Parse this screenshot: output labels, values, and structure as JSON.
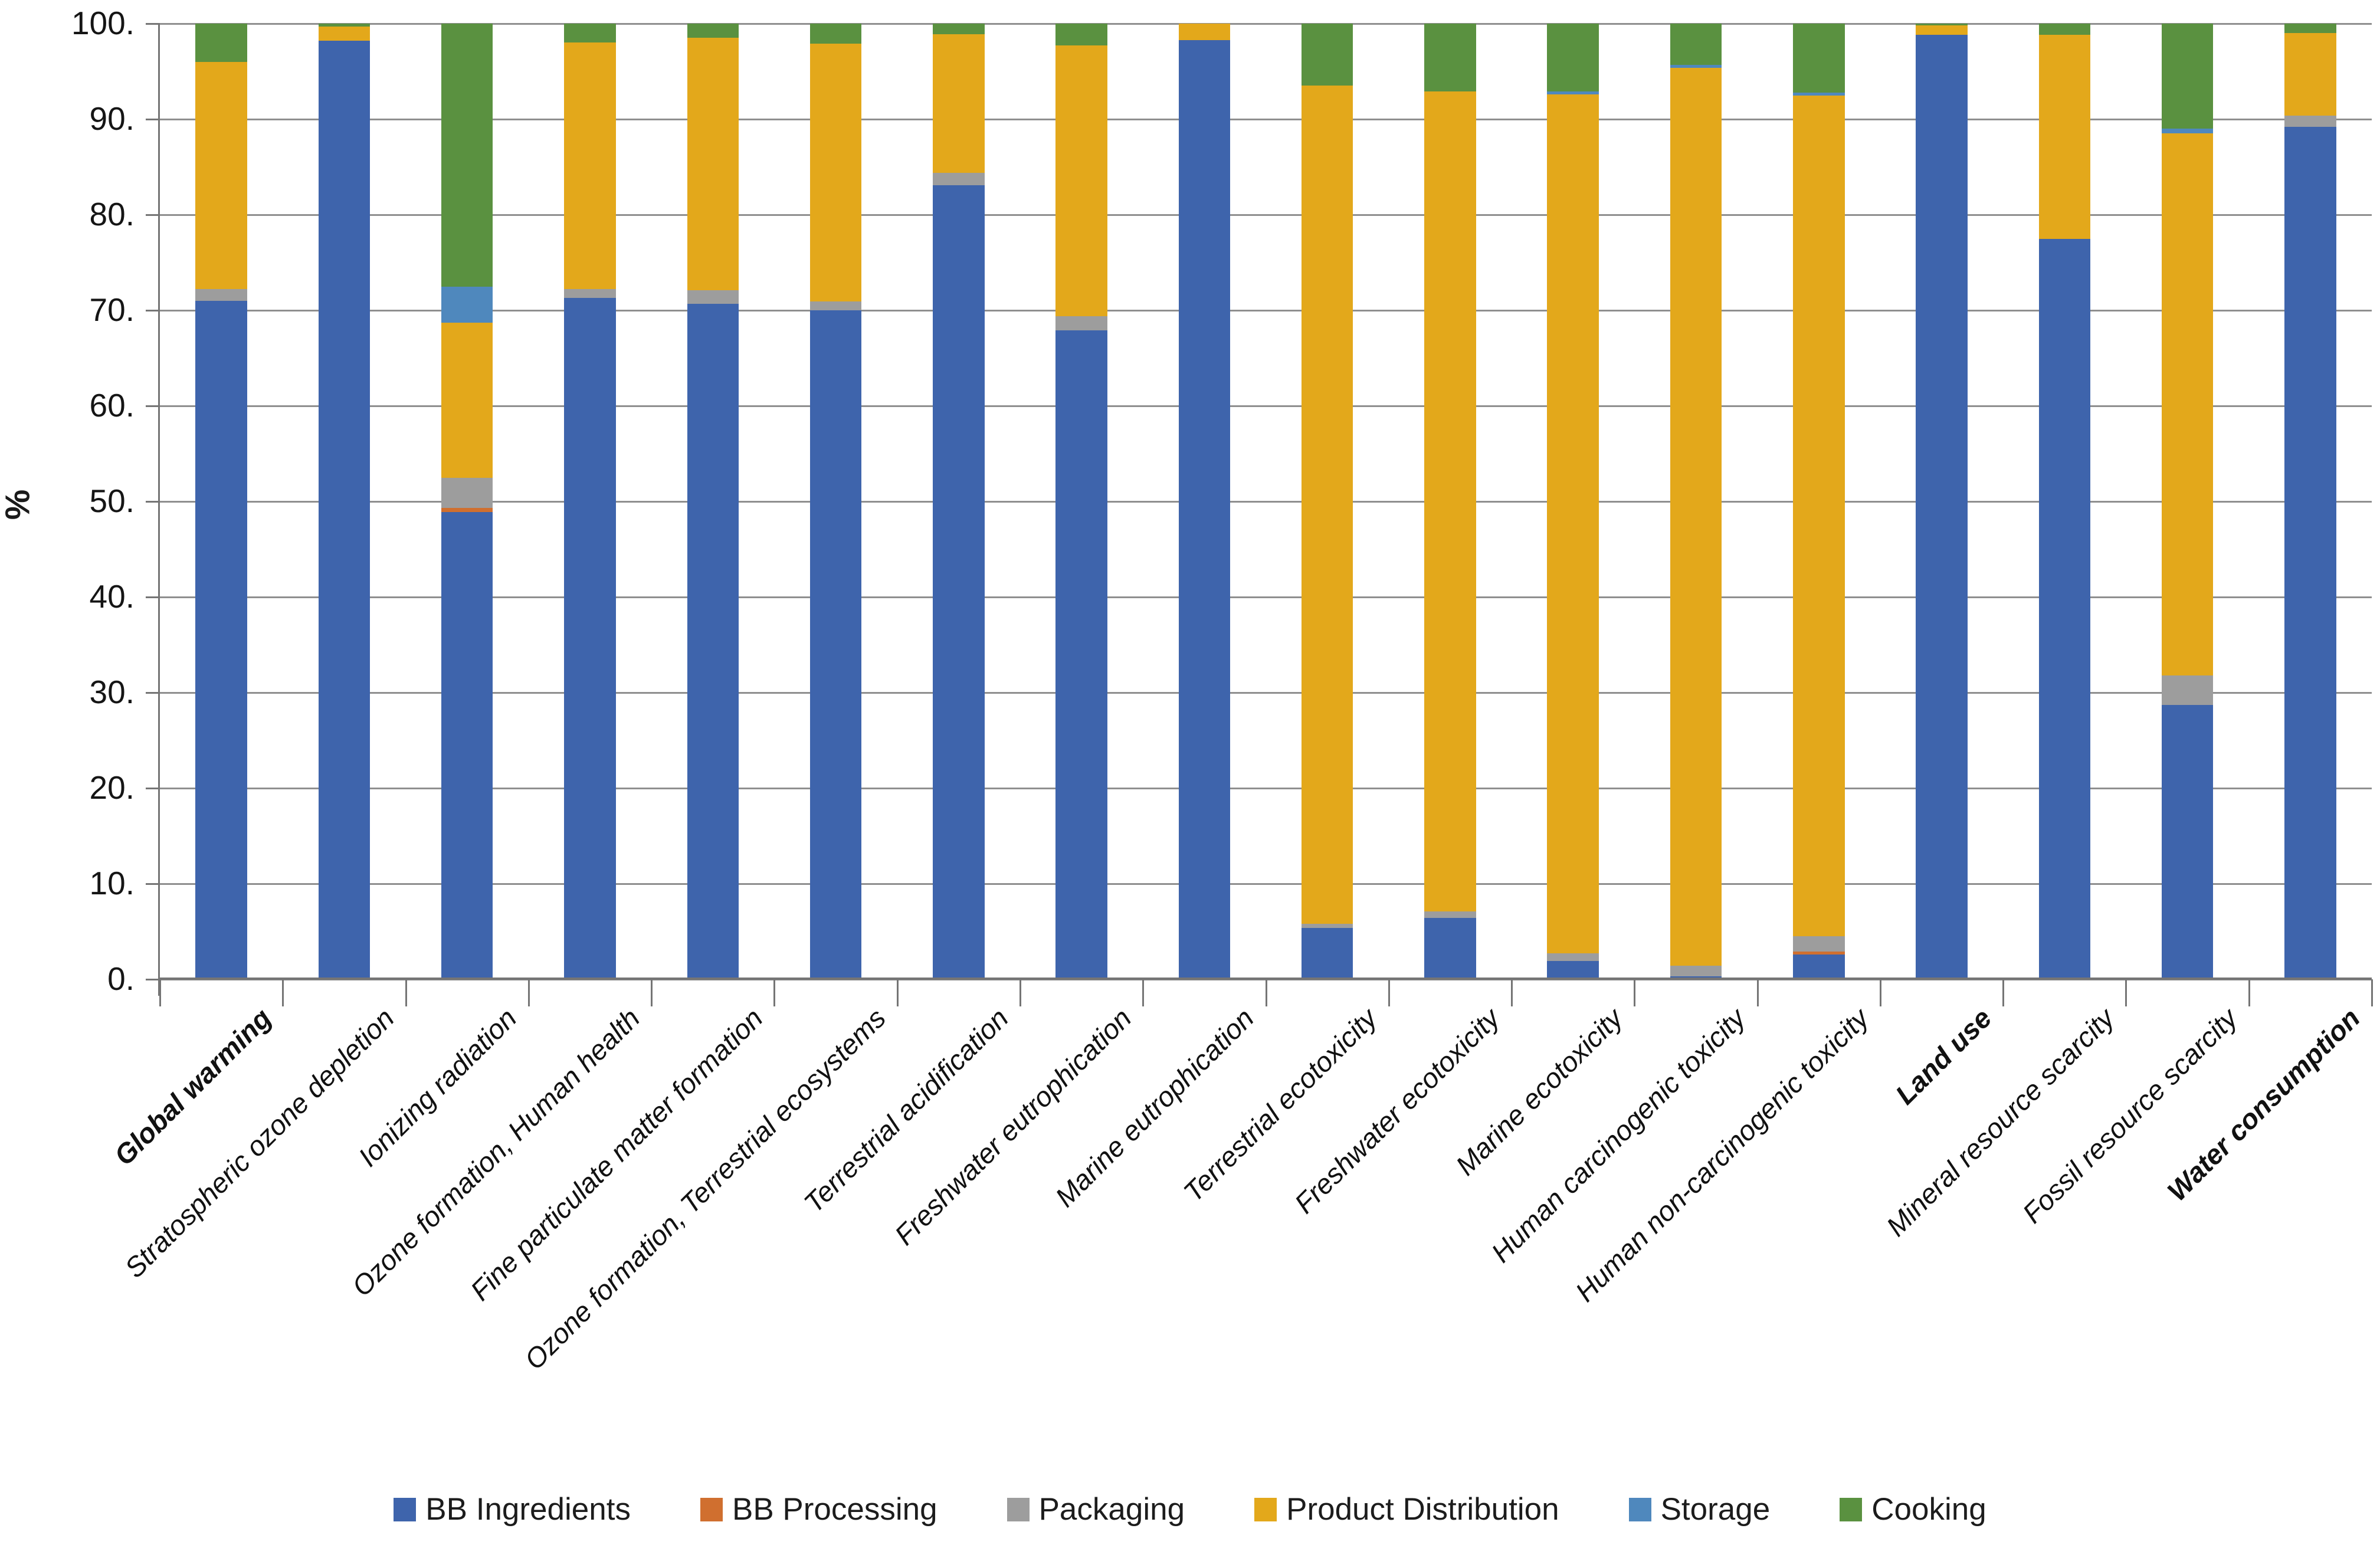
{
  "chart_data": {
    "type": "bar",
    "stacked": true,
    "orientation": "vertical",
    "title": "",
    "xlabel": "",
    "ylabel": "%",
    "ylim": [
      0,
      100
    ],
    "ytick_step": 10,
    "ytick_suffix": ".",
    "grid": true,
    "legend_position": "bottom",
    "categories": [
      "Global warming",
      "Stratospheric ozone depletion",
      "Ionizing radiation",
      "Ozone formation, Human health",
      "Fine particulate matter formation",
      "Ozone formation, Terrestrial ecosystems",
      "Terrestrial acidification",
      "Freshwater eutrophication",
      "Marine eutrophication",
      "Terrestrial ecotoxicity",
      "Freshwater ecotoxicity",
      "Marine ecotoxicity",
      "Human carcinogenic toxicity",
      "Human non-carcinogenic toxicity",
      "Land use",
      "Mineral resource scarcity",
      "Fossil resource scarcity",
      "Water consumption"
    ],
    "bold_category_indices": [
      0,
      14,
      17
    ],
    "series": [
      {
        "name": "BB Ingredients",
        "color": "#3E64AC",
        "values": [
          71.0,
          98.2,
          48.9,
          71.3,
          70.7,
          70.0,
          83.1,
          67.9,
          98.3,
          5.4,
          6.4,
          1.9,
          0.3,
          2.6,
          98.8,
          77.5,
          28.7,
          89.2
        ]
      },
      {
        "name": "BB Processing",
        "color": "#D06F2F",
        "values": [
          0,
          0,
          0.4,
          0,
          0,
          0,
          0,
          0,
          0,
          0,
          0,
          0,
          0,
          0.3,
          0,
          0,
          0,
          0
        ]
      },
      {
        "name": "Packaging",
        "color": "#9D9D9D",
        "values": [
          1.2,
          0,
          3.2,
          0.9,
          1.4,
          0.9,
          1.3,
          1.5,
          0,
          0.4,
          0.7,
          0.8,
          1.1,
          1.6,
          0,
          0,
          3.1,
          1.2
        ]
      },
      {
        "name": "Product Distribution",
        "color": "#E3A81B",
        "values": [
          23.8,
          1.5,
          16.2,
          25.8,
          26.4,
          27.0,
          14.5,
          28.3,
          1.7,
          87.7,
          85.8,
          89.9,
          94.0,
          88.0,
          1.0,
          21.3,
          56.7,
          8.6
        ]
      },
      {
        "name": "Storage",
        "color": "#4F88BD",
        "values": [
          0,
          0,
          3.8,
          0,
          0,
          0,
          0,
          0,
          0,
          0,
          0,
          0.3,
          0.3,
          0.3,
          0,
          0,
          0.5,
          0
        ]
      },
      {
        "name": "Cooking",
        "color": "#5A9140",
        "values": [
          4.0,
          0.3,
          27.5,
          2.0,
          1.5,
          2.1,
          1.1,
          2.3,
          0,
          6.5,
          7.1,
          7.1,
          4.3,
          7.2,
          0.2,
          1.2,
          11.0,
          1.0
        ]
      }
    ]
  },
  "axis": {
    "ylabel": "%"
  }
}
